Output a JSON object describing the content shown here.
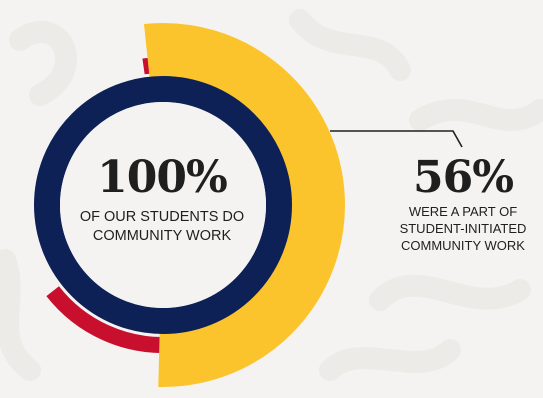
{
  "colors": {
    "background": "#f4f3f1",
    "navy": "#0d2157",
    "gold": "#fcc42c",
    "red": "#c8102e",
    "text": "#1f1f1f",
    "connector": "#1f1f1f"
  },
  "chart_data": {
    "type": "donut",
    "series": [
      {
        "name": "",
        "values": [
          100
        ]
      },
      {
        "name": "",
        "values": [
          56
        ]
      }
    ],
    "center_stat": {
      "value": "100%",
      "caption": "OF OUR STUDENTS DO COMMUNITY WORK"
    },
    "side_stat": {
      "value": "56%",
      "caption": "WERE A PART OF STUDENT-INITIATED COMMUNITY WORK"
    }
  }
}
